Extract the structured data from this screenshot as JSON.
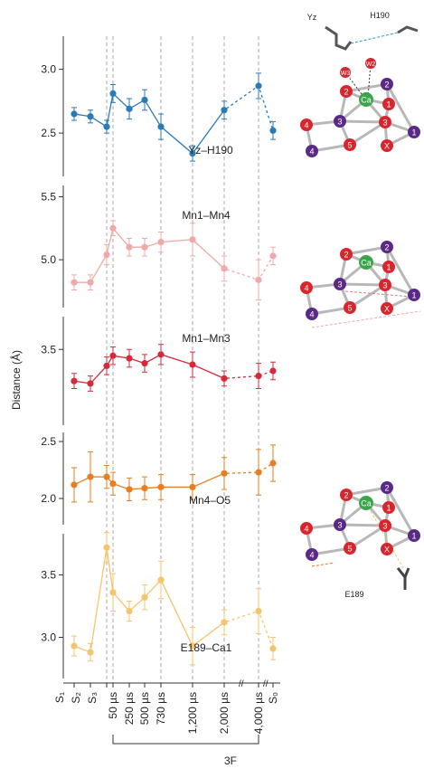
{
  "chart_data": [
    {
      "type": "line",
      "label": "Yz–H190",
      "color": "#2a7ab8",
      "values": [
        2.65,
        2.63,
        2.55,
        2.81,
        2.69,
        2.76,
        2.55,
        2.34,
        2.68,
        2.87,
        2.52
      ],
      "errors": [
        0.05,
        0.05,
        0.05,
        0.07,
        0.08,
        0.08,
        0.1,
        0.06,
        0.07,
        0.1,
        0.07
      ],
      "ylim": [
        2.16,
        3.26
      ],
      "yticks": [
        {
          "value": 2.5,
          "label": "2.5"
        },
        {
          "value": 3,
          "label": "3.0"
        }
      ]
    },
    {
      "type": "line",
      "label": "Mn1–Mn4",
      "color": "#f0a8a8",
      "values": [
        4.82,
        4.82,
        5.04,
        5.25,
        5.1,
        5.1,
        5.14,
        5.16,
        4.93,
        4.84,
        5.03
      ],
      "errors": [
        0.06,
        0.06,
        0.08,
        0.06,
        0.07,
        0.07,
        0.08,
        0.13,
        0.1,
        0.16,
        0.07
      ],
      "ylim": [
        4.62,
        5.59
      ],
      "yticks": [
        {
          "value": 5,
          "label": "5.0"
        },
        5.5
      ]
    },
    {
      "type": "line",
      "label": "Mn1–Mn3",
      "color": "#d42a3c",
      "values": [
        3.25,
        3.23,
        3.37,
        3.45,
        3.43,
        3.39,
        3.46,
        3.38,
        3.27,
        3.29,
        3.33
      ],
      "errors": [
        0.06,
        0.06,
        0.07,
        0.07,
        0.07,
        0.07,
        0.08,
        0.1,
        0.06,
        0.1,
        0.07
      ],
      "ylim": [
        2.9,
        3.76
      ],
      "yticks": [
        3.5
      ]
    },
    {
      "type": "line",
      "label": "Mn4–O5",
      "color": "#e67e22",
      "values": [
        2.12,
        2.19,
        2.19,
        2.13,
        2.08,
        2.09,
        2.1,
        2.1,
        2.22,
        2.23,
        2.31
      ],
      "errors": [
        0.15,
        0.22,
        0.1,
        0.1,
        0.1,
        0.1,
        0.11,
        0.11,
        0.14,
        0.2,
        0.16
      ],
      "ylim": [
        1.77,
        2.58
      ],
      "yticks": [
        {
          "value": 2,
          "label": "2.0"
        },
        2.5
      ]
    },
    {
      "type": "line",
      "label": "E189–Ca1",
      "color": "#f5c46e",
      "values": [
        2.93,
        2.88,
        3.72,
        3.36,
        3.21,
        3.32,
        3.46,
        2.93,
        3.12,
        3.21,
        2.91
      ],
      "errors": [
        0.08,
        0.07,
        0.12,
        0.15,
        0.08,
        0.1,
        0.15,
        0.15,
        0.1,
        0.18,
        0.09
      ],
      "ylim": [
        2.67,
        3.83
      ],
      "yticks": [
        {
          "value": 3,
          "label": "3.0"
        },
        3.5
      ],
      "categories": [
        "S₁",
        "S₂",
        "S₃",
        "50 µs",
        "250 µs",
        "500 µs",
        "730 µs",
        "1,200 µs",
        "2,000 µs",
        "4,000 µs",
        "S₀"
      ]
    }
  ],
  "ylabel": "Distance (Å)",
  "group_label": "3F",
  "diagrams": [
    {
      "nodes": [
        "Ca",
        "2",
        "2",
        "1",
        "3",
        "3",
        "1",
        "4",
        "5",
        "X",
        "4"
      ],
      "labels": [
        "Yz",
        "H190",
        "W3",
        "W2"
      ]
    },
    {
      "nodes": [
        "Ca",
        "2",
        "2",
        "1",
        "3",
        "3",
        "1",
        "4",
        "5",
        "X",
        "4"
      ]
    },
    {
      "nodes": [
        "Ca",
        "2",
        "2",
        "1",
        "3",
        "3",
        "1",
        "4",
        "5",
        "X",
        "4"
      ],
      "labels": [
        "E189"
      ]
    }
  ]
}
